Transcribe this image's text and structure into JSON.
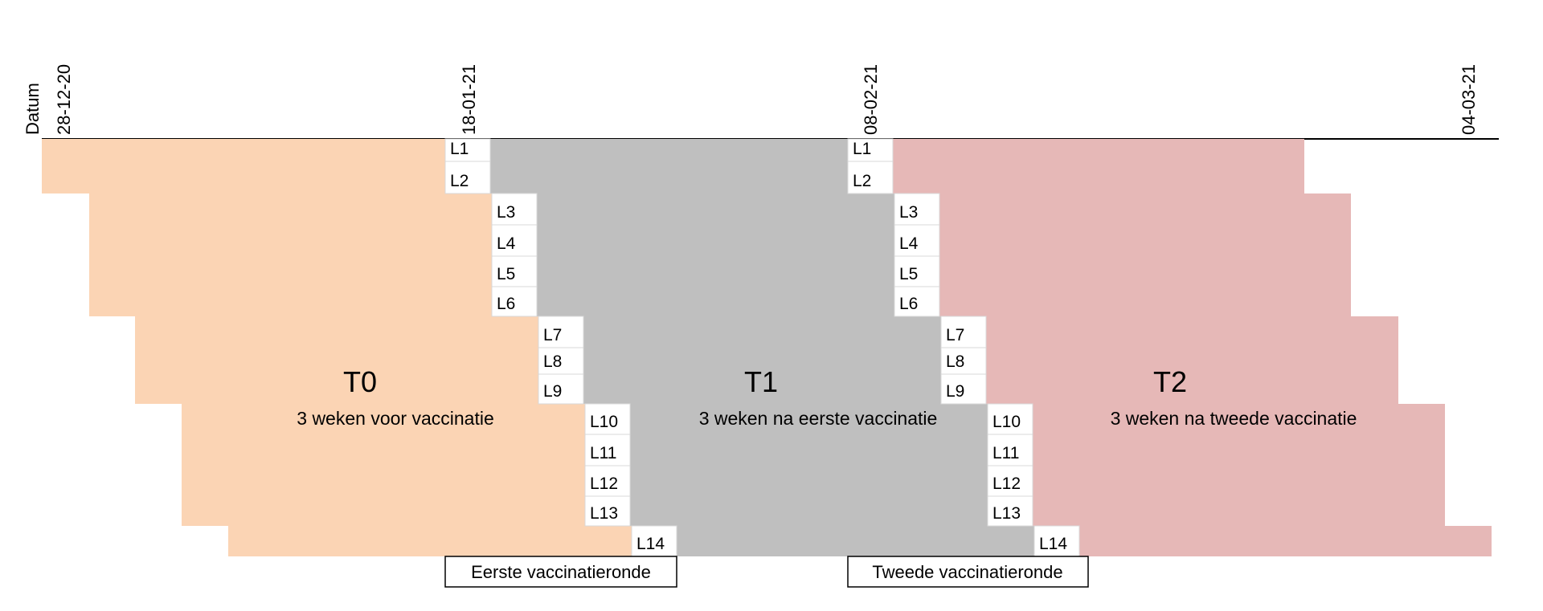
{
  "axis": {
    "label": "Datum",
    "dates": [
      "28-12-20",
      "18-01-21",
      "08-02-21",
      "04-03-21"
    ]
  },
  "phases": [
    {
      "id": "T0",
      "title": "T0",
      "subtitle": "3 weken voor vaccinatie",
      "color": "#fbd4b4"
    },
    {
      "id": "T1",
      "title": "T1",
      "subtitle": "3 weken na eerste vaccinatie",
      "color": "#bfbfbf"
    },
    {
      "id": "T2",
      "title": "T2",
      "subtitle": "3 weken na tweede vaccinatie",
      "color": "#e6b8b7"
    }
  ],
  "locations": [
    "L1",
    "L2",
    "L3",
    "L4",
    "L5",
    "L6",
    "L7",
    "L8",
    "L9",
    "L10",
    "L11",
    "L12",
    "L13",
    "L14"
  ],
  "rounds": {
    "first": "Eerste vaccinatieronde",
    "second": "Tweede vaccinatieronde"
  }
}
